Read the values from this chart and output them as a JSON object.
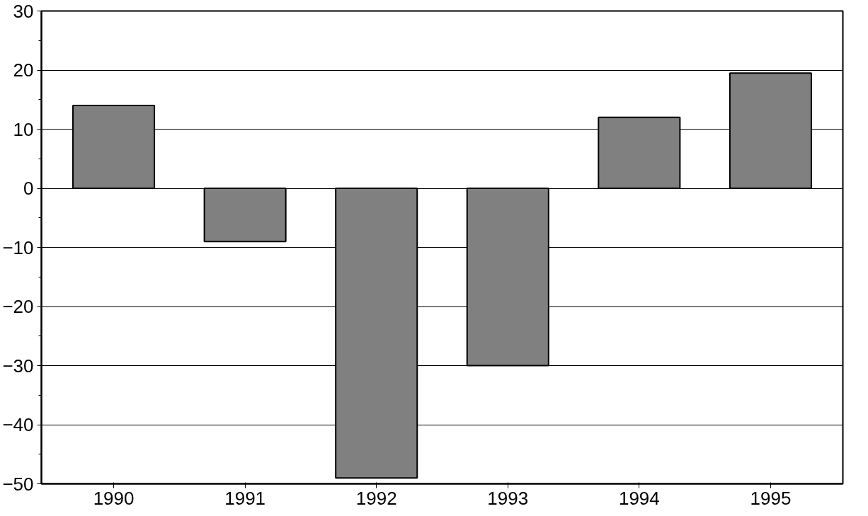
{
  "chart_data": {
    "type": "bar",
    "categories": [
      "1990",
      "1991",
      "1992",
      "1993",
      "1994",
      "1995"
    ],
    "values": [
      14,
      -9,
      -49,
      -30,
      12,
      19.5
    ],
    "color": "#808080",
    "ylim": [
      -50,
      30
    ],
    "yticks": [
      -50,
      -40,
      -30,
      -20,
      -10,
      0,
      10,
      20,
      30
    ],
    "grid": "y"
  }
}
